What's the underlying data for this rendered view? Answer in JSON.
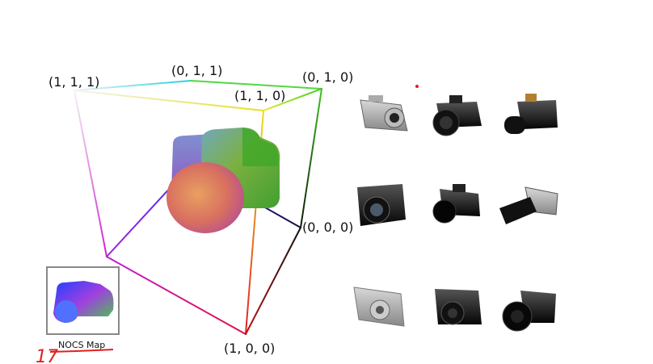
{
  "nocs_cube": {
    "corner_labels": {
      "c111_top_left": "(1, 1, 1)",
      "c011_top_back": "(0, 1, 1)",
      "c010_top_right": "(0, 1, 0)",
      "c110_top_front": "(1, 1, 0)",
      "c000_right": "(0, 0, 0)",
      "c100_bottom": "(1, 0, 0)"
    }
  },
  "inset": {
    "caption": "NOCS Map"
  },
  "gallery": {
    "rows": [
      [
        "compact-camera",
        "dslr-camera",
        "dslr-zoom-camera"
      ],
      [
        "dslr-front-camera",
        "dslr-angled-camera",
        "telephoto-camera"
      ],
      [
        "silver-compact-camera",
        "black-compact-camera",
        "black-zoom-camera"
      ]
    ]
  },
  "annotation": {
    "handwritten": "17"
  }
}
